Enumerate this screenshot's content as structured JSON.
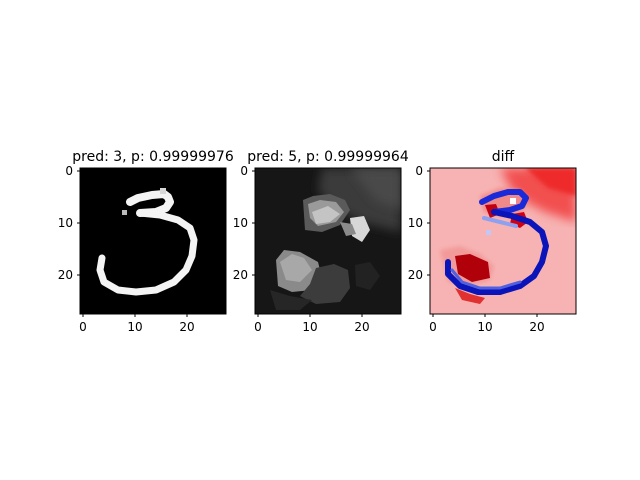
{
  "chart_data": [
    {
      "type": "heatmap",
      "title": "pred: 3, p: 0.99999976",
      "colormap": "gray",
      "xlim": [
        0,
        27
      ],
      "ylim": [
        0,
        27
      ],
      "xticks": [
        "0",
        "10",
        "20"
      ],
      "yticks": [
        "0",
        "10",
        "20"
      ]
    },
    {
      "type": "heatmap",
      "title": "pred: 5, p: 0.99999964",
      "colormap": "gray",
      "xlim": [
        0,
        27
      ],
      "ylim": [
        0,
        27
      ],
      "xticks": [
        "0",
        "10",
        "20"
      ],
      "yticks": [
        "0",
        "10",
        "20"
      ]
    },
    {
      "type": "heatmap",
      "title": "diff",
      "colormap": "bwr",
      "xlim": [
        0,
        27
      ],
      "ylim": [
        0,
        27
      ],
      "xticks": [
        "0",
        "10",
        "20"
      ],
      "yticks": [
        "0",
        "10",
        "20"
      ]
    }
  ]
}
